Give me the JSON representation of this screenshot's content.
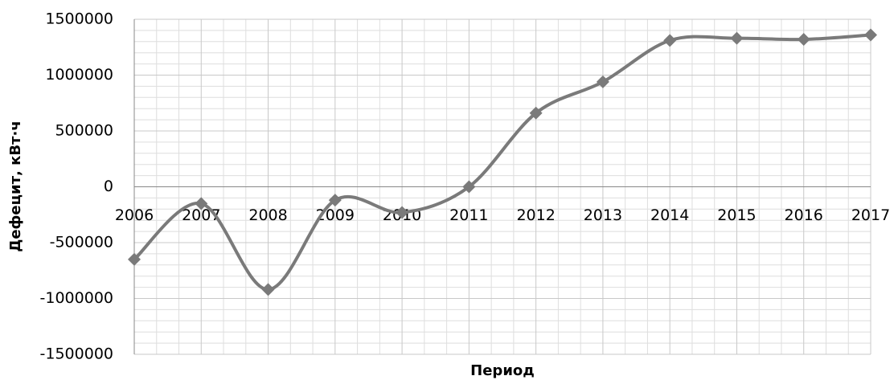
{
  "chart_data": {
    "type": "line",
    "x_label": "Период",
    "y_label": "Дефецит, кВт·ч",
    "categories": [
      "2006",
      "2007",
      "2008",
      "2009",
      "2010",
      "2011",
      "2012",
      "2013",
      "2014",
      "2015",
      "2016",
      "2017"
    ],
    "series": [
      {
        "name": "Дефецит",
        "color": "#7a7a7a",
        "values": [
          -650000,
          -150000,
          -920000,
          -120000,
          -230000,
          0,
          660000,
          940000,
          1310000,
          1330000,
          1320000,
          1360000
        ]
      }
    ],
    "ylim": [
      -1500000,
      1500000
    ],
    "yticks": [
      -1500000,
      -1000000,
      -500000,
      0,
      500000,
      1000000,
      1500000
    ],
    "grid": true,
    "smooth": true,
    "marker": "diamond"
  }
}
